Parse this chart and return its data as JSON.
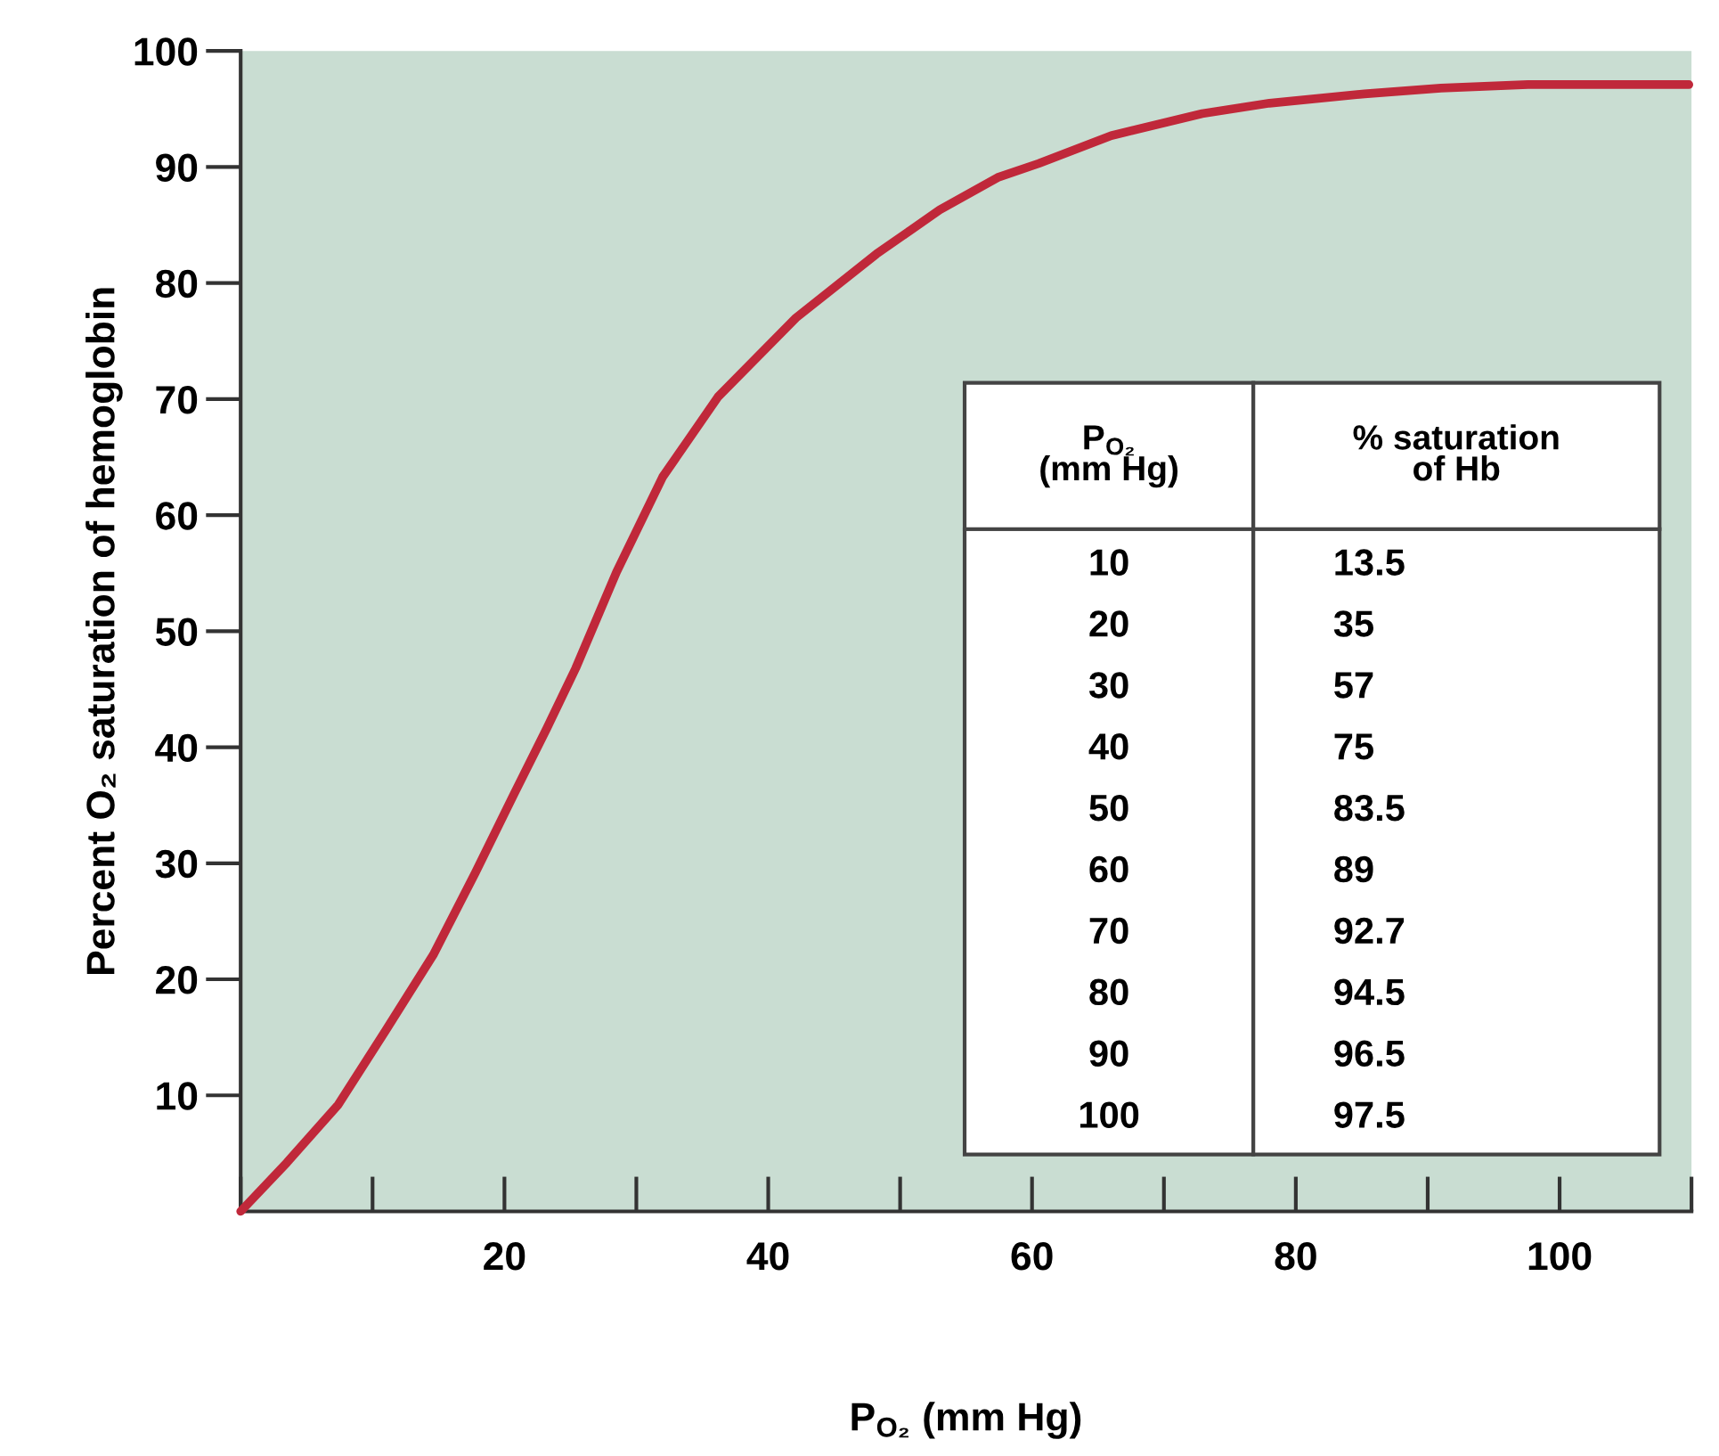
{
  "chart_data": {
    "type": "line",
    "xlabel": "P$_{O₂}$ (mm Hg)",
    "ylabel": "Percent O₂ saturation of hemoglobin",
    "series": [
      {
        "color": "#c0283a",
        "x": [
          0,
          3.5,
          7.4,
          11,
          14.6,
          17.8,
          20.7,
          23.2,
          25.4,
          28.5,
          32,
          36.2,
          42.1,
          48.2,
          53,
          57.4,
          60.5,
          66,
          72.9,
          78,
          85.2,
          91,
          97.6,
          103,
          109.8
        ],
        "values": [
          0,
          4.2,
          9.2,
          15.6,
          22.1,
          29.2,
          35.9,
          41.6,
          46.8,
          55.1,
          63.3,
          70.2,
          77,
          82.5,
          86.3,
          89.1,
          90.3,
          92.7,
          94.6,
          95.5,
          96.3,
          96.8,
          97.1,
          97.1,
          97.1
        ]
      }
    ],
    "xlim": [
      0,
      110
    ],
    "ylim": [
      0,
      100
    ],
    "xticks": [
      20,
      40,
      60,
      80,
      100
    ],
    "yticks": [
      10,
      20,
      30,
      40,
      50,
      60,
      70,
      80,
      90,
      100
    ],
    "grid": false,
    "line_style": "solid",
    "marker": "none",
    "annotations": [
      "P$_{O₂}$\n(mm Hg)",
      "% saturation\nof Hb",
      "10",
      "13.5",
      "20",
      "35",
      "30",
      "57",
      "40",
      "75",
      "50",
      "83.5",
      "60",
      "89",
      "70",
      "92.7",
      "80",
      "94.5",
      "90",
      "96.5",
      "100",
      "97.5"
    ]
  }
}
